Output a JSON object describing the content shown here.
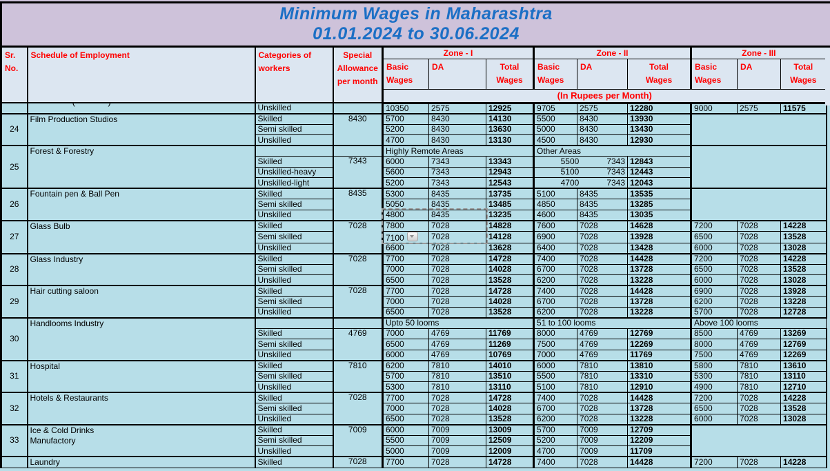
{
  "colors": {
    "title_bg": "#cec2da",
    "title_text": "#1b6fc5",
    "header_bg": "#dce6f1",
    "cell_bg": "#b7dee8",
    "accent_red": "#ff0000",
    "grid": "#000000"
  },
  "title": {
    "line1": "Minimum Wages in Maharashtra",
    "line2": "01.01.2024 to 30.06.2024"
  },
  "header": {
    "sr": "Sr.\nNo.",
    "schedule": "Schedule of Employment",
    "categories": "Categories of\nworkers",
    "special": "Special\nAllowance\nper month",
    "zones": [
      "Zone - I",
      "Zone - II",
      "Zone - III"
    ],
    "cols": {
      "basic": "Basic\nWages",
      "da": "DA",
      "total": "Total\nWages"
    },
    "rupees_note": "(In Rupees per Month)"
  },
  "autofill_dropdown": {
    "group_sr": "27",
    "category": "Semi skilled"
  },
  "selection": {
    "from": {
      "group_sr": "26",
      "category": "Unskilled"
    },
    "to": {
      "group_sr": "27",
      "category": "Semi skilled"
    }
  },
  "table": {
    "groups": [
      {
        "sr": "",
        "name": "",
        "fragment": "( )",
        "special": "",
        "zone3": "data",
        "rows": [
          {
            "category": "Unskilled",
            "z1": [
              "10350",
              "2575",
              "12925"
            ],
            "z2": [
              "9705",
              "2575",
              "12280"
            ],
            "z3": [
              "9000",
              "2575",
              "11575"
            ]
          }
        ]
      },
      {
        "sr": "24",
        "name": "Film Production Studios",
        "special": "8430",
        "zone3": "empty",
        "rows": [
          {
            "category": "Skilled",
            "z1": [
              "5700",
              "8430",
              "14130"
            ],
            "z2": [
              "5500",
              "8430",
              "13930"
            ]
          },
          {
            "category": "Semi skilled",
            "z1": [
              "5200",
              "8430",
              "13630"
            ],
            "z2": [
              "5000",
              "8430",
              "13430"
            ]
          },
          {
            "category": "Unskilled",
            "z1": [
              "4700",
              "8430",
              "13130"
            ],
            "z2": [
              "4500",
              "8430",
              "12930"
            ]
          }
        ]
      },
      {
        "sr": "25",
        "name": "Forest & Forestry",
        "special": "7343",
        "zone3": "empty",
        "rows": [
          {
            "subheader": [
              "Highly Remote Areas",
              "Other Areas"
            ]
          },
          {
            "category": "Skilled",
            "z1": [
              "6000",
              "7343",
              "13343"
            ],
            "z2": [
              "5500",
              "7343",
              "12843"
            ],
            "z2_merged": true
          },
          {
            "category": "Unskilled-heavy",
            "z1": [
              "5600",
              "7343",
              "12943"
            ],
            "z2": [
              "5100",
              "7343",
              "12443"
            ],
            "z2_merged": true
          },
          {
            "category": "Unskilled-light",
            "z1": [
              "5200",
              "7343",
              "12543"
            ],
            "z2": [
              "4700",
              "7343",
              "12043"
            ],
            "z2_merged": true
          }
        ]
      },
      {
        "sr": "26",
        "name": "Fountain pen & Ball Pen",
        "special": "8435",
        "zone3": "empty",
        "rows": [
          {
            "category": "Skilled",
            "z1": [
              "5300",
              "8435",
              "13735"
            ],
            "z2": [
              "5100",
              "8435",
              "13535"
            ]
          },
          {
            "category": "Semi skilled",
            "z1": [
              "5050",
              "8435",
              "13485"
            ],
            "z2": [
              "4850",
              "8435",
              "13285"
            ]
          },
          {
            "category": "Unskilled",
            "z1": [
              "4800",
              "8435",
              "13235"
            ],
            "z2": [
              "4600",
              "8435",
              "13035"
            ]
          }
        ]
      },
      {
        "sr": "27",
        "name": "Glass Bulb",
        "special": "7028",
        "zone3": "data",
        "rows": [
          {
            "category": "Skilled",
            "z1": [
              "7800",
              "7028",
              "14828"
            ],
            "z2": [
              "7600",
              "7028",
              "14628"
            ],
            "z3": [
              "7200",
              "7028",
              "14228"
            ]
          },
          {
            "category": "Semi skilled",
            "z1": [
              "7100",
              "7028",
              "14128"
            ],
            "z2": [
              "6900",
              "7028",
              "13928"
            ],
            "z3": [
              "6500",
              "7028",
              "13528"
            ]
          },
          {
            "category": "Unskilled",
            "z1": [
              "6600",
              "7028",
              "13628"
            ],
            "z2": [
              "6400",
              "7028",
              "13428"
            ],
            "z3": [
              "6000",
              "7028",
              "13028"
            ]
          }
        ]
      },
      {
        "sr": "28",
        "name": "Glass Industry",
        "special": "7028",
        "zone3": "data",
        "rows": [
          {
            "category": "Skilled",
            "z1": [
              "7700",
              "7028",
              "14728"
            ],
            "z2": [
              "7400",
              "7028",
              "14428"
            ],
            "z3": [
              "7200",
              "7028",
              "14228"
            ]
          },
          {
            "category": "Semi skilled",
            "z1": [
              "7000",
              "7028",
              "14028"
            ],
            "z2": [
              "6700",
              "7028",
              "13728"
            ],
            "z3": [
              "6500",
              "7028",
              "13528"
            ]
          },
          {
            "category": "Unskilled",
            "z1": [
              "6500",
              "7028",
              "13528"
            ],
            "z2": [
              "6200",
              "7028",
              "13228"
            ],
            "z3": [
              "6000",
              "7028",
              "13028"
            ]
          }
        ]
      },
      {
        "sr": "29",
        "name": "Hair cutting saloon",
        "special": "7028",
        "zone3": "data",
        "rows": [
          {
            "category": "Skilled",
            "z1": [
              "7700",
              "7028",
              "14728"
            ],
            "z2": [
              "7400",
              "7028",
              "14428"
            ],
            "z3": [
              "6900",
              "7028",
              "13928"
            ]
          },
          {
            "category": "Semi skilled",
            "z1": [
              "7000",
              "7028",
              "14028"
            ],
            "z2": [
              "6700",
              "7028",
              "13728"
            ],
            "z3": [
              "6200",
              "7028",
              "13228"
            ]
          },
          {
            "category": "Unskilled",
            "z1": [
              "6500",
              "7028",
              "13528"
            ],
            "z2": [
              "6200",
              "7028",
              "13228"
            ],
            "z3": [
              "5700",
              "7028",
              "12728"
            ]
          }
        ]
      },
      {
        "sr": "30",
        "name": "Handlooms Industry",
        "special": "4769",
        "zone3": "data",
        "rows": [
          {
            "subheader": [
              "Upto 50 looms",
              "51 to 100 looms",
              "Above 100 looms"
            ]
          },
          {
            "category": "Skilled",
            "z1": [
              "7000",
              "4769",
              "11769"
            ],
            "z2": [
              "8000",
              "4769",
              "12769"
            ],
            "z3": [
              "8500",
              "4769",
              "13269"
            ]
          },
          {
            "category": "Semi skilled",
            "z1": [
              "6500",
              "4769",
              "11269"
            ],
            "z2": [
              "7500",
              "4769",
              "12269"
            ],
            "z3": [
              "8000",
              "4769",
              "12769"
            ]
          },
          {
            "category": "Unskilled",
            "z1": [
              "6000",
              "4769",
              "10769"
            ],
            "z2": [
              "7000",
              "4769",
              "11769"
            ],
            "z3": [
              "7500",
              "4769",
              "12269"
            ]
          }
        ]
      },
      {
        "sr": "31",
        "name": "Hospital",
        "special": "7810",
        "zone3": "data",
        "rows": [
          {
            "category": "Skilled",
            "z1": [
              "6200",
              "7810",
              "14010"
            ],
            "z2": [
              "6000",
              "7810",
              "13810"
            ],
            "z3": [
              "5800",
              "7810",
              "13610"
            ]
          },
          {
            "category": "Semi skilled",
            "z1": [
              "5700",
              "7810",
              "13510"
            ],
            "z2": [
              "5500",
              "7810",
              "13310"
            ],
            "z3": [
              "5300",
              "7810",
              "13110"
            ]
          },
          {
            "category": "Unskilled",
            "z1": [
              "5300",
              "7810",
              "13110"
            ],
            "z2": [
              "5100",
              "7810",
              "12910"
            ],
            "z3": [
              "4900",
              "7810",
              "12710"
            ]
          }
        ]
      },
      {
        "sr": "32",
        "name": "Hotels & Restaurants",
        "special": "7028",
        "zone3": "data",
        "rows": [
          {
            "category": "Skilled",
            "z1": [
              "7700",
              "7028",
              "14728"
            ],
            "z2": [
              "7400",
              "7028",
              "14428"
            ],
            "z3": [
              "7200",
              "7028",
              "14228"
            ]
          },
          {
            "category": "Semi skilled",
            "z1": [
              "7000",
              "7028",
              "14028"
            ],
            "z2": [
              "6700",
              "7028",
              "13728"
            ],
            "z3": [
              "6500",
              "7028",
              "13528"
            ]
          },
          {
            "category": "Unskilled",
            "z1": [
              "6500",
              "7028",
              "13528"
            ],
            "z2": [
              "6200",
              "7028",
              "13228"
            ],
            "z3": [
              "6000",
              "7028",
              "13028"
            ]
          }
        ]
      },
      {
        "sr": "33",
        "name": "Ice & Cold Drinks\nManufactory",
        "special": "7009",
        "zone3": "empty",
        "rows": [
          {
            "category": "Skilled",
            "z1": [
              "6000",
              "7009",
              "13009"
            ],
            "z2": [
              "5700",
              "7009",
              "12709"
            ]
          },
          {
            "category": "Semi skilled",
            "z1": [
              "5500",
              "7009",
              "12509"
            ],
            "z2": [
              "5200",
              "7009",
              "12209"
            ]
          },
          {
            "category": "Unskilled",
            "z1": [
              "5000",
              "7009",
              "12009"
            ],
            "z2": [
              "4700",
              "7009",
              "11709"
            ]
          }
        ]
      },
      {
        "sr": "",
        "name": "Laundry",
        "special": "7028",
        "zone3": "data",
        "rows": [
          {
            "category": "Skilled",
            "z1": [
              "7700",
              "7028",
              "14728"
            ],
            "z2": [
              "7400",
              "7028",
              "14428"
            ],
            "z3": [
              "7200",
              "7028",
              "14228"
            ]
          }
        ]
      }
    ]
  }
}
